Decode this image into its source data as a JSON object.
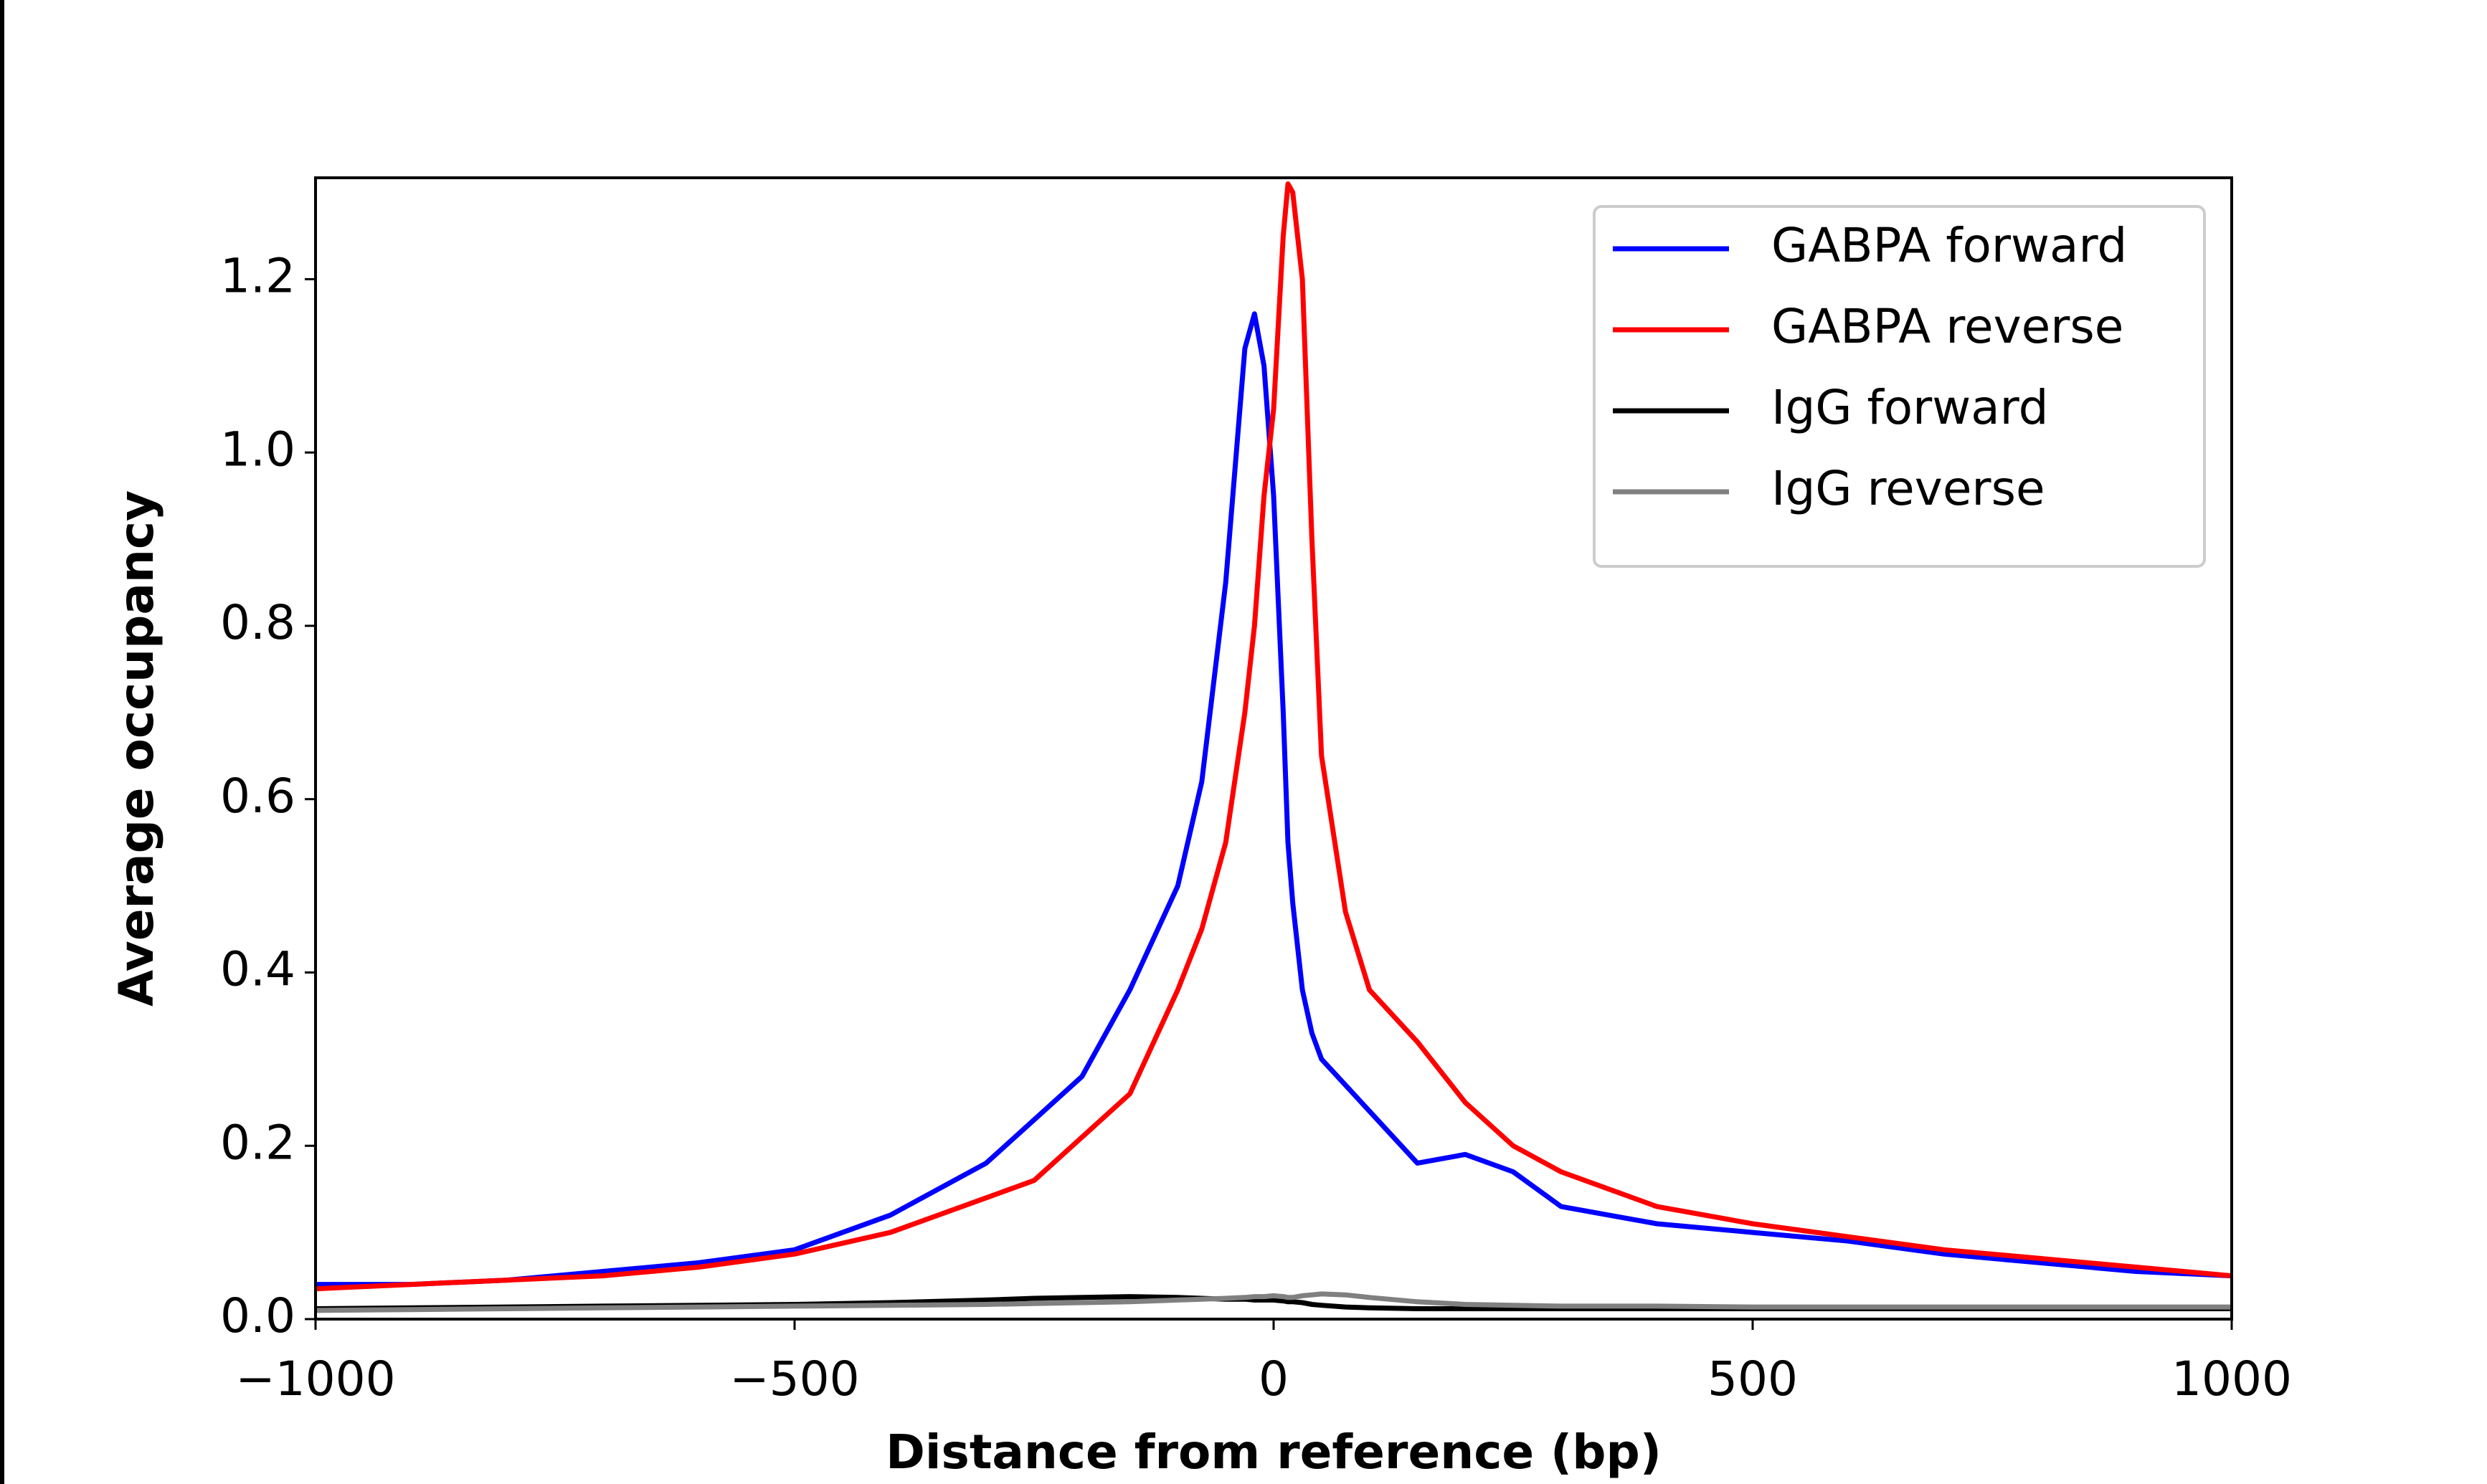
{
  "chart_data": {
    "type": "line",
    "x_label": "Distance from reference (bp)",
    "y_label": "Average occupancy",
    "x": [
      -1000,
      -900,
      -800,
      -700,
      -600,
      -500,
      -400,
      -300,
      -250,
      -200,
      -150,
      -100,
      -75,
      -50,
      -30,
      -20,
      -10,
      0,
      10,
      15,
      20,
      30,
      40,
      50,
      75,
      100,
      150,
      200,
      250,
      300,
      400,
      500,
      600,
      700,
      800,
      900,
      1000
    ],
    "series": [
      {
        "name": "GABPA forward",
        "color": "#0000ff",
        "values": [
          0.04,
          0.04,
          0.045,
          0.055,
          0.065,
          0.08,
          0.12,
          0.18,
          0.23,
          0.28,
          0.38,
          0.5,
          0.62,
          0.85,
          1.12,
          1.16,
          1.1,
          0.95,
          0.7,
          0.55,
          0.48,
          0.38,
          0.33,
          0.3,
          0.27,
          0.24,
          0.18,
          0.19,
          0.17,
          0.13,
          0.11,
          0.1,
          0.09,
          0.075,
          0.065,
          0.055,
          0.05
        ]
      },
      {
        "name": "GABPA reverse",
        "color": "#ff0000",
        "values": [
          0.035,
          0.04,
          0.045,
          0.05,
          0.06,
          0.075,
          0.1,
          0.14,
          0.16,
          0.21,
          0.26,
          0.38,
          0.45,
          0.55,
          0.7,
          0.8,
          0.95,
          1.05,
          1.25,
          1.31,
          1.3,
          1.2,
          0.9,
          0.65,
          0.47,
          0.38,
          0.32,
          0.25,
          0.2,
          0.17,
          0.13,
          0.11,
          0.095,
          0.08,
          0.07,
          0.06,
          0.05
        ]
      },
      {
        "name": "IgG forward",
        "color": "#000000",
        "values": [
          0.012,
          0.013,
          0.014,
          0.015,
          0.016,
          0.017,
          0.019,
          0.022,
          0.024,
          0.025,
          0.026,
          0.025,
          0.024,
          0.023,
          0.023,
          0.022,
          0.022,
          0.022,
          0.021,
          0.02,
          0.02,
          0.019,
          0.017,
          0.016,
          0.014,
          0.013,
          0.012,
          0.012,
          0.012,
          0.012,
          0.012,
          0.012,
          0.012,
          0.012,
          0.012,
          0.012,
          0.012
        ]
      },
      {
        "name": "IgG reverse",
        "color": "#808080",
        "values": [
          0.01,
          0.011,
          0.012,
          0.013,
          0.014,
          0.015,
          0.016,
          0.017,
          0.018,
          0.019,
          0.02,
          0.022,
          0.023,
          0.024,
          0.025,
          0.026,
          0.026,
          0.027,
          0.026,
          0.025,
          0.025,
          0.027,
          0.028,
          0.029,
          0.028,
          0.025,
          0.02,
          0.017,
          0.016,
          0.015,
          0.015,
          0.014,
          0.014,
          0.014,
          0.014,
          0.014,
          0.014
        ]
      }
    ],
    "xlim": [
      -1000,
      1000
    ],
    "xticks": [
      {
        "value": -1000,
        "label": "−1000"
      },
      {
        "value": -500,
        "label": "−500"
      },
      0,
      500,
      1000
    ],
    "ylim": [
      0,
      1.317
    ],
    "yticks": [
      {
        "value": 0,
        "label": "0.0"
      },
      0.2,
      0.4,
      0.6,
      0.8,
      {
        "value": 1,
        "label": "1.0"
      },
      1.2
    ],
    "grid": false,
    "legend": "upper right"
  }
}
